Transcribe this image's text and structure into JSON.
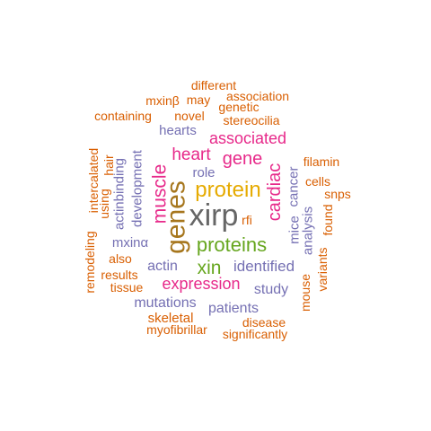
{
  "colors": {
    "orange": "#D95F02",
    "slate": "#7570B3",
    "magenta": "#E7298A",
    "green": "#66A61E",
    "gold": "#E6AB02",
    "olive": "#A6761D",
    "gray": "#666666"
  },
  "words": [
    {
      "id": "xirp",
      "text": "xirp",
      "color": "gray"
    },
    {
      "id": "genes",
      "text": "genes",
      "color": "olive"
    },
    {
      "id": "protein",
      "text": "protein",
      "color": "gold"
    },
    {
      "id": "proteins",
      "text": "proteins",
      "color": "green"
    },
    {
      "id": "muscle",
      "text": "muscle",
      "color": "magenta"
    },
    {
      "id": "cardiac",
      "text": "cardiac",
      "color": "magenta"
    },
    {
      "id": "gene",
      "text": "gene",
      "color": "magenta"
    },
    {
      "id": "heart",
      "text": "heart",
      "color": "magenta"
    },
    {
      "id": "xin",
      "text": "xin",
      "color": "green"
    },
    {
      "id": "expression",
      "text": "expression",
      "color": "magenta"
    },
    {
      "id": "associated",
      "text": "associated",
      "color": "magenta"
    },
    {
      "id": "identified",
      "text": "identified",
      "color": "slate"
    },
    {
      "id": "actin",
      "text": "actin",
      "color": "slate"
    },
    {
      "id": "patients",
      "text": "patients",
      "color": "slate"
    },
    {
      "id": "mutations",
      "text": "mutations",
      "color": "slate"
    },
    {
      "id": "study",
      "text": "study",
      "color": "slate"
    },
    {
      "id": "development",
      "text": "development",
      "color": "slate"
    },
    {
      "id": "mxinalpha",
      "text": "mxinα",
      "color": "slate"
    },
    {
      "id": "hearts",
      "text": "hearts",
      "color": "slate"
    },
    {
      "id": "role",
      "text": "role",
      "color": "slate"
    },
    {
      "id": "actinbinding",
      "text": "actinbinding",
      "color": "slate"
    },
    {
      "id": "mice",
      "text": "mice",
      "color": "slate"
    },
    {
      "id": "cancer",
      "text": "cancer",
      "color": "slate"
    },
    {
      "id": "analysis",
      "text": "analysis",
      "color": "slate"
    },
    {
      "id": "rfi",
      "text": "rfi",
      "color": "orange"
    },
    {
      "id": "skeletal",
      "text": "skeletal",
      "color": "orange"
    },
    {
      "id": "myofibrillar",
      "text": "myofibrillar",
      "color": "orange"
    },
    {
      "id": "significantly",
      "text": "significantly",
      "color": "orange"
    },
    {
      "id": "disease",
      "text": "disease",
      "color": "orange"
    },
    {
      "id": "tissue",
      "text": "tissue",
      "color": "orange"
    },
    {
      "id": "results",
      "text": "results",
      "color": "orange"
    },
    {
      "id": "also",
      "text": "also",
      "color": "orange"
    },
    {
      "id": "remodeling",
      "text": "remodeling",
      "color": "orange"
    },
    {
      "id": "intercalated",
      "text": "intercalated",
      "color": "orange"
    },
    {
      "id": "using",
      "text": "using",
      "color": "orange"
    },
    {
      "id": "hair",
      "text": "hair",
      "color": "orange"
    },
    {
      "id": "containing",
      "text": "containing",
      "color": "orange"
    },
    {
      "id": "mxinbeta",
      "text": "mxinβ",
      "color": "orange"
    },
    {
      "id": "novel",
      "text": "novel",
      "color": "orange"
    },
    {
      "id": "may",
      "text": "may",
      "color": "orange"
    },
    {
      "id": "different",
      "text": "different",
      "color": "orange"
    },
    {
      "id": "association",
      "text": "association",
      "color": "orange"
    },
    {
      "id": "genetic",
      "text": "genetic",
      "color": "orange"
    },
    {
      "id": "stereocilia",
      "text": "stereocilia",
      "color": "orange"
    },
    {
      "id": "filamin",
      "text": "filamin",
      "color": "orange"
    },
    {
      "id": "cells",
      "text": "cells",
      "color": "orange"
    },
    {
      "id": "snps",
      "text": "snps",
      "color": "orange"
    },
    {
      "id": "found",
      "text": "found",
      "color": "orange"
    },
    {
      "id": "variants",
      "text": "variants",
      "color": "orange"
    },
    {
      "id": "mouse",
      "text": "mouse",
      "color": "orange"
    }
  ]
}
